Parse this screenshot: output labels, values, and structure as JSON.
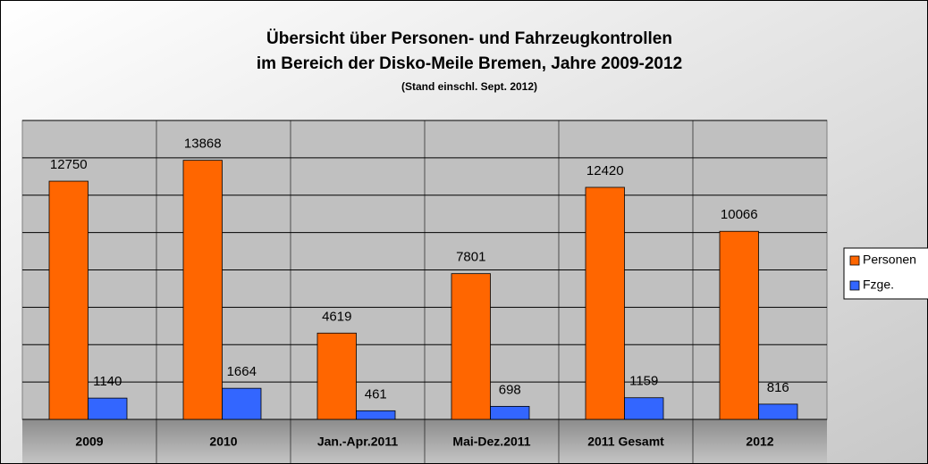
{
  "chart_data": {
    "type": "bar",
    "title": "Übersicht über Personen- und Fahrzeugkontrollen",
    "subtitle": "im Bereich der Disko-Meile Bremen, Jahre 2009-2012",
    "note": "(Stand einschl. Sept. 2012)",
    "categories": [
      "2009",
      "2010",
      "Jan.-Apr.2011",
      "Mai-Dez.2011",
      "2011 Gesamt",
      "2012"
    ],
    "series": [
      {
        "name": "Personen",
        "color": "#ff6600",
        "values": [
          12750,
          13868,
          4619,
          7801,
          12420,
          10066
        ]
      },
      {
        "name": "Fzge.",
        "color": "#3366ff",
        "values": [
          1140,
          1664,
          461,
          698,
          1159,
          816
        ]
      }
    ],
    "ylim": [
      0,
      16000
    ],
    "yticks": [
      0,
      2000,
      4000,
      6000,
      8000,
      10000,
      12000,
      14000,
      16000
    ],
    "grid": true,
    "legend": "right"
  }
}
